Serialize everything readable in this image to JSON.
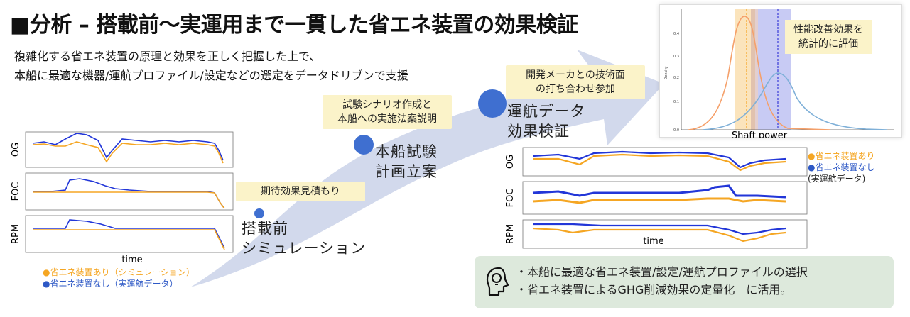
{
  "header": {
    "title": "■分析 – 搭載前〜実運用まで一貫した省エネ装置の効果検証",
    "subtitle_line1": "複雑化する省エネ装置の原理と効果を正しく把握した上で、",
    "subtitle_line2": "本船に最適な機器/運航プロファイル/設定などの選定をデータドリブンで支援"
  },
  "stages": [
    {
      "label": "搭載前\nシミュレーション",
      "note": "期待効果見積もり"
    },
    {
      "label": "本船試験\n計画立案",
      "note": "試験シナリオ作成と\n本船への実施法案説明"
    },
    {
      "label": "運航データ\n効果検証",
      "note": "開発メーカとの技術面\nの打ち合わせ参加"
    }
  ],
  "left_chart": {
    "panels": [
      "OG",
      "FOC",
      "RPM"
    ],
    "xlabel": "time",
    "legend_orange": "●省エネ装置あり（シミュレーション）",
    "legend_blue": "●省エネ装置なし（実運航データ）"
  },
  "right_chart": {
    "panels": [
      "OG",
      "FOC",
      "RPM"
    ],
    "xlabel": "time",
    "legend_orange": "●省エネ装置あり",
    "legend_blue": "●省エネ装置なし",
    "legend_note": "(実運航データ)"
  },
  "dist_chart": {
    "xlabel": "Shaft power",
    "ylabel": "Density",
    "yticks": [
      "0.0",
      "0.1",
      "0.2",
      "0.3",
      "0.4"
    ],
    "annotation": "性能改善効果を\n統計的に評価"
  },
  "info": {
    "icon": "lightbulb-head-icon",
    "line1": "・本船に最適な省エネ装置/設定/運航プロファイルの選択",
    "line2": "・省エネ装置によるGHG削減効果の定量化　に活用。"
  },
  "colors": {
    "orange": "#f5a623",
    "blue": "#2236d8",
    "arrow": "#cdd5ea",
    "note_bg": "#fbf3c9",
    "info_bg": "#dde9dc"
  }
}
